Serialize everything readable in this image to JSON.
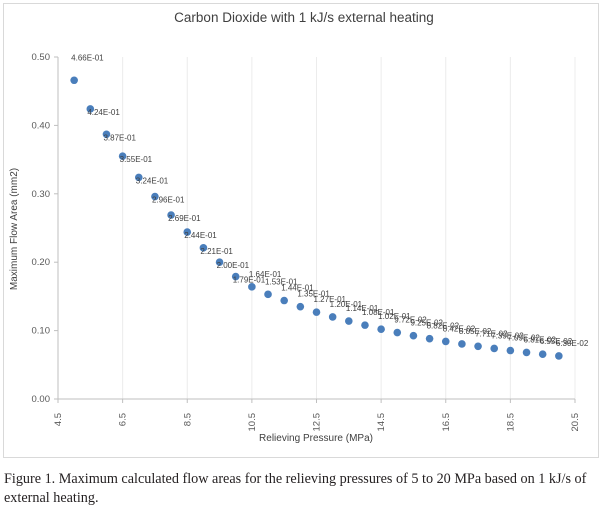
{
  "chart_data": {
    "type": "scatter",
    "title": "Carbon Dioxide with 1 kJ/s external heating",
    "xlabel": "Relieving Pressure (MPa)",
    "ylabel": "Maximum Flow Area (mm2)",
    "xlim": [
      4.5,
      20.5
    ],
    "ylim": [
      0,
      0.5
    ],
    "x_ticks": [
      "4.5",
      "6.5",
      "8.5",
      "10.5",
      "12.5",
      "14.5",
      "16.5",
      "18.5",
      "20.5"
    ],
    "y_ticks": [
      "0.00",
      "0.10",
      "0.20",
      "0.30",
      "0.40",
      "0.50"
    ],
    "grid": "vertical",
    "legend": "none",
    "marker_color": "#4a7ebb",
    "series": [
      {
        "name": "Maximum Flow Area",
        "x": [
          5,
          5.5,
          6,
          6.5,
          7,
          7.5,
          8,
          8.5,
          9,
          9.5,
          10,
          10.5,
          11,
          11.5,
          12,
          12.5,
          13,
          13.5,
          14,
          14.5,
          15,
          15.5,
          16,
          16.5,
          17,
          17.5,
          18,
          18.5,
          19,
          19.5,
          20
        ],
        "y": [
          0.466,
          0.424,
          0.387,
          0.355,
          0.324,
          0.296,
          0.269,
          0.244,
          0.221,
          0.2,
          0.179,
          0.164,
          0.153,
          0.144,
          0.135,
          0.127,
          0.12,
          0.114,
          0.108,
          0.102,
          0.0972,
          0.0925,
          0.0882,
          0.0842,
          0.0805,
          0.0771,
          0.0739,
          0.0709,
          0.0681,
          0.0655,
          0.063
        ],
        "labels": [
          "4.66E-01",
          "4.24E-01",
          "3.87E-01",
          "3.55E-01",
          "3.24E-01",
          "2.96E-01",
          "2.69E-01",
          "2.44E-01",
          "2.21E-01",
          "2.00E-01",
          "1.79E-01",
          "1.64E-01",
          "1.53E-01",
          "1.44E-01",
          "1.35E-01",
          "1.27E-01",
          "1.20E-01",
          "1.14E-01",
          "1.08E-01",
          "1.02E-01",
          "9.72E-02",
          "9.25E-02",
          "8.82E-02",
          "8.42E-02",
          "8.05E-02",
          "7.71E-02",
          "7.39E-02",
          "7.09E-02",
          "6.81E-02",
          "6.55E-02",
          "6.30E-02"
        ]
      }
    ]
  },
  "caption": "Figure 1. Maximum calculated flow areas for the relieving pressures of 5 to 20 MPa based on 1 kJ/s of external heating."
}
